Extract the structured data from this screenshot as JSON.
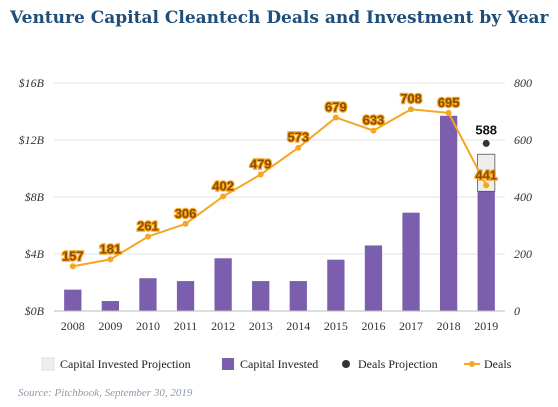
{
  "title": "Venture Capital Cleantech Deals and Investment by Year",
  "source": "Source: Pitchbook, September 30, 2019",
  "colors": {
    "title": "#1e4e79",
    "bar": "#7b5fae",
    "deals_line": "#f5a623",
    "projection_marker": "#333333",
    "projection_box_fill": "#eeeeee",
    "projection_box_stroke": "#555555",
    "grid": "#e3e3e3"
  },
  "chart_data": {
    "type": "bar",
    "categories": [
      "2008",
      "2009",
      "2010",
      "2011",
      "2012",
      "2013",
      "2014",
      "2015",
      "2016",
      "2017",
      "2018",
      "2019"
    ],
    "left_axis": {
      "ylim": [
        0,
        16
      ],
      "ticks": [
        0,
        4,
        8,
        12,
        16
      ],
      "tick_labels": [
        "$0B",
        "$4B",
        "$8B",
        "$12B",
        "$16B"
      ]
    },
    "right_axis": {
      "ylim": [
        0,
        800
      ],
      "ticks": [
        0,
        200,
        400,
        600,
        800
      ],
      "tick_labels": [
        "0",
        "200",
        "400",
        "600",
        "800"
      ]
    },
    "grid": true,
    "legend_position": "bottom",
    "series": [
      {
        "name": "Capital Invested",
        "type": "bar",
        "axis": "left",
        "values": [
          1.5,
          0.7,
          2.3,
          2.1,
          3.7,
          2.1,
          2.1,
          3.6,
          4.6,
          6.9,
          13.7,
          8.4
        ]
      },
      {
        "name": "Deals",
        "type": "line",
        "axis": "right",
        "values": [
          157,
          181,
          261,
          306,
          402,
          479,
          573,
          679,
          633,
          708,
          695,
          441
        ],
        "labels": [
          "157",
          "181",
          "261",
          "306",
          "402",
          "479",
          "573",
          "679",
          "633",
          "708",
          "695",
          "441"
        ]
      },
      {
        "name": "Capital Invested Projection",
        "type": "bar",
        "axis": "left",
        "category": "2019",
        "value_from": 8.4,
        "value_to": 11.0
      },
      {
        "name": "Deals Projection",
        "type": "scatter",
        "axis": "right",
        "category": "2019",
        "value": 588,
        "label": "588"
      }
    ],
    "legend": [
      {
        "name": "Capital Invested Projection",
        "marker": "box-light"
      },
      {
        "name": "Capital Invested",
        "marker": "box-bar"
      },
      {
        "name": "Deals Projection",
        "marker": "dot-dark"
      },
      {
        "name": "Deals",
        "marker": "line-dot"
      }
    ]
  }
}
